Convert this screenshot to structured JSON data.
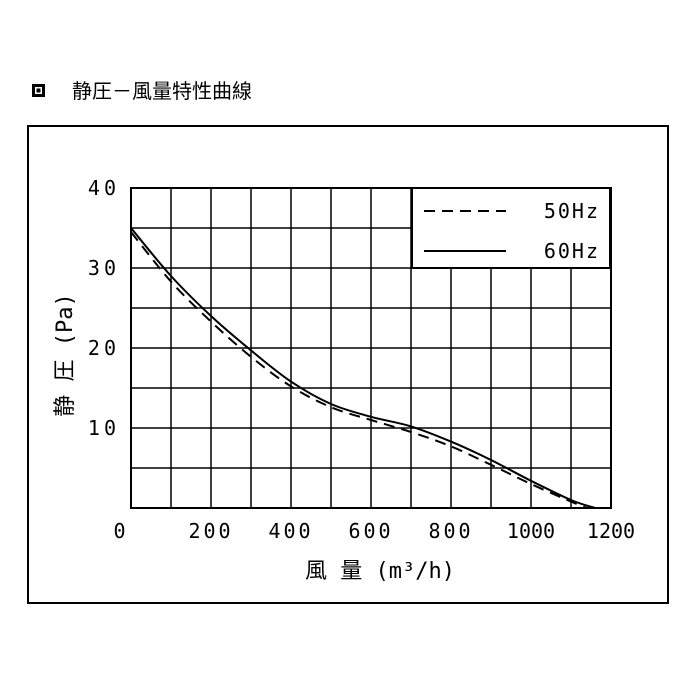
{
  "title": "静圧－風量特性曲線",
  "chart_data": {
    "type": "line",
    "title": "静圧－風量特性曲線",
    "xlabel": "風 量 (m³/h)",
    "ylabel": "静 圧 (Pa)",
    "xlim": [
      0,
      1200
    ],
    "ylim": [
      0,
      40
    ],
    "x_ticks": [
      0,
      200,
      400,
      600,
      800,
      1000,
      1200
    ],
    "y_ticks": [
      10,
      20,
      30,
      40
    ],
    "x_tick_labels": [
      "0",
      "200",
      "400",
      "600",
      "800",
      "1000",
      "1200"
    ],
    "y_tick_labels": [
      "10",
      "20",
      "30",
      "40"
    ],
    "grid": true,
    "legend_position": "top-right",
    "series": [
      {
        "name": "50Hz",
        "style": "dashed",
        "x": [
          0,
          100,
          200,
          300,
          400,
          500,
          600,
          700,
          800,
          900,
          1000,
          1100,
          1140
        ],
        "y": [
          34.5,
          28.3,
          23.3,
          18.9,
          15.2,
          12.6,
          11.0,
          9.5,
          7.7,
          5.4,
          3.0,
          0.8,
          0
        ]
      },
      {
        "name": "60Hz",
        "style": "solid",
        "x": [
          0,
          100,
          200,
          300,
          400,
          500,
          600,
          700,
          800,
          900,
          1000,
          1100,
          1160
        ],
        "y": [
          35.0,
          29.0,
          24.0,
          19.7,
          15.8,
          13.0,
          11.4,
          10.2,
          8.3,
          6.0,
          3.4,
          1.0,
          0
        ]
      }
    ]
  }
}
